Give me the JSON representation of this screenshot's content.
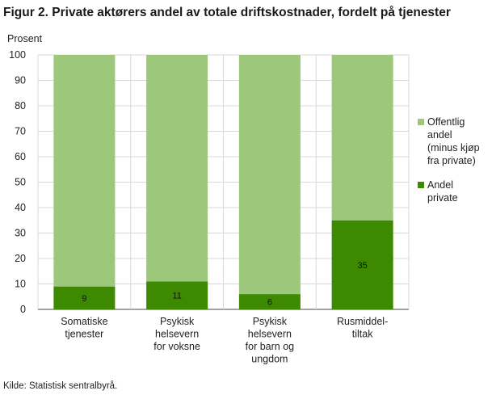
{
  "title": "Figur 2. Private aktørers andel av totale driftskostnader, fordelt på tjenester",
  "source": "Kilde: Statistisk sentralbyrå.",
  "colors": {
    "private": "#3d8a00",
    "public": "#9dc77a",
    "grid": "#d9d9d9"
  },
  "chart_data": {
    "type": "bar",
    "stacked": true,
    "ylabel": "Prosent",
    "ylim": [
      0,
      100
    ],
    "yticks": [
      0,
      10,
      20,
      30,
      40,
      50,
      60,
      70,
      80,
      90,
      100
    ],
    "categories": [
      "Somatiske\ntjenester",
      "Psykisk\nhelsevern\nfor voksne",
      "Psykisk\nhelsevern\nfor barn og\nungdom",
      "Rusmiddel-\ntiltak"
    ],
    "series": [
      {
        "name": "Andel\nprivate",
        "values": [
          9,
          11,
          6,
          35
        ],
        "color": "#3d8a00",
        "data_labels": [
          "9",
          "11",
          "6",
          "35"
        ]
      },
      {
        "name": "Offentlig\nandel\n(minus kjøp\nfra private)",
        "values": [
          91,
          89,
          94,
          65
        ],
        "color": "#9dc77a"
      }
    ],
    "grid": true,
    "legend": "right"
  }
}
